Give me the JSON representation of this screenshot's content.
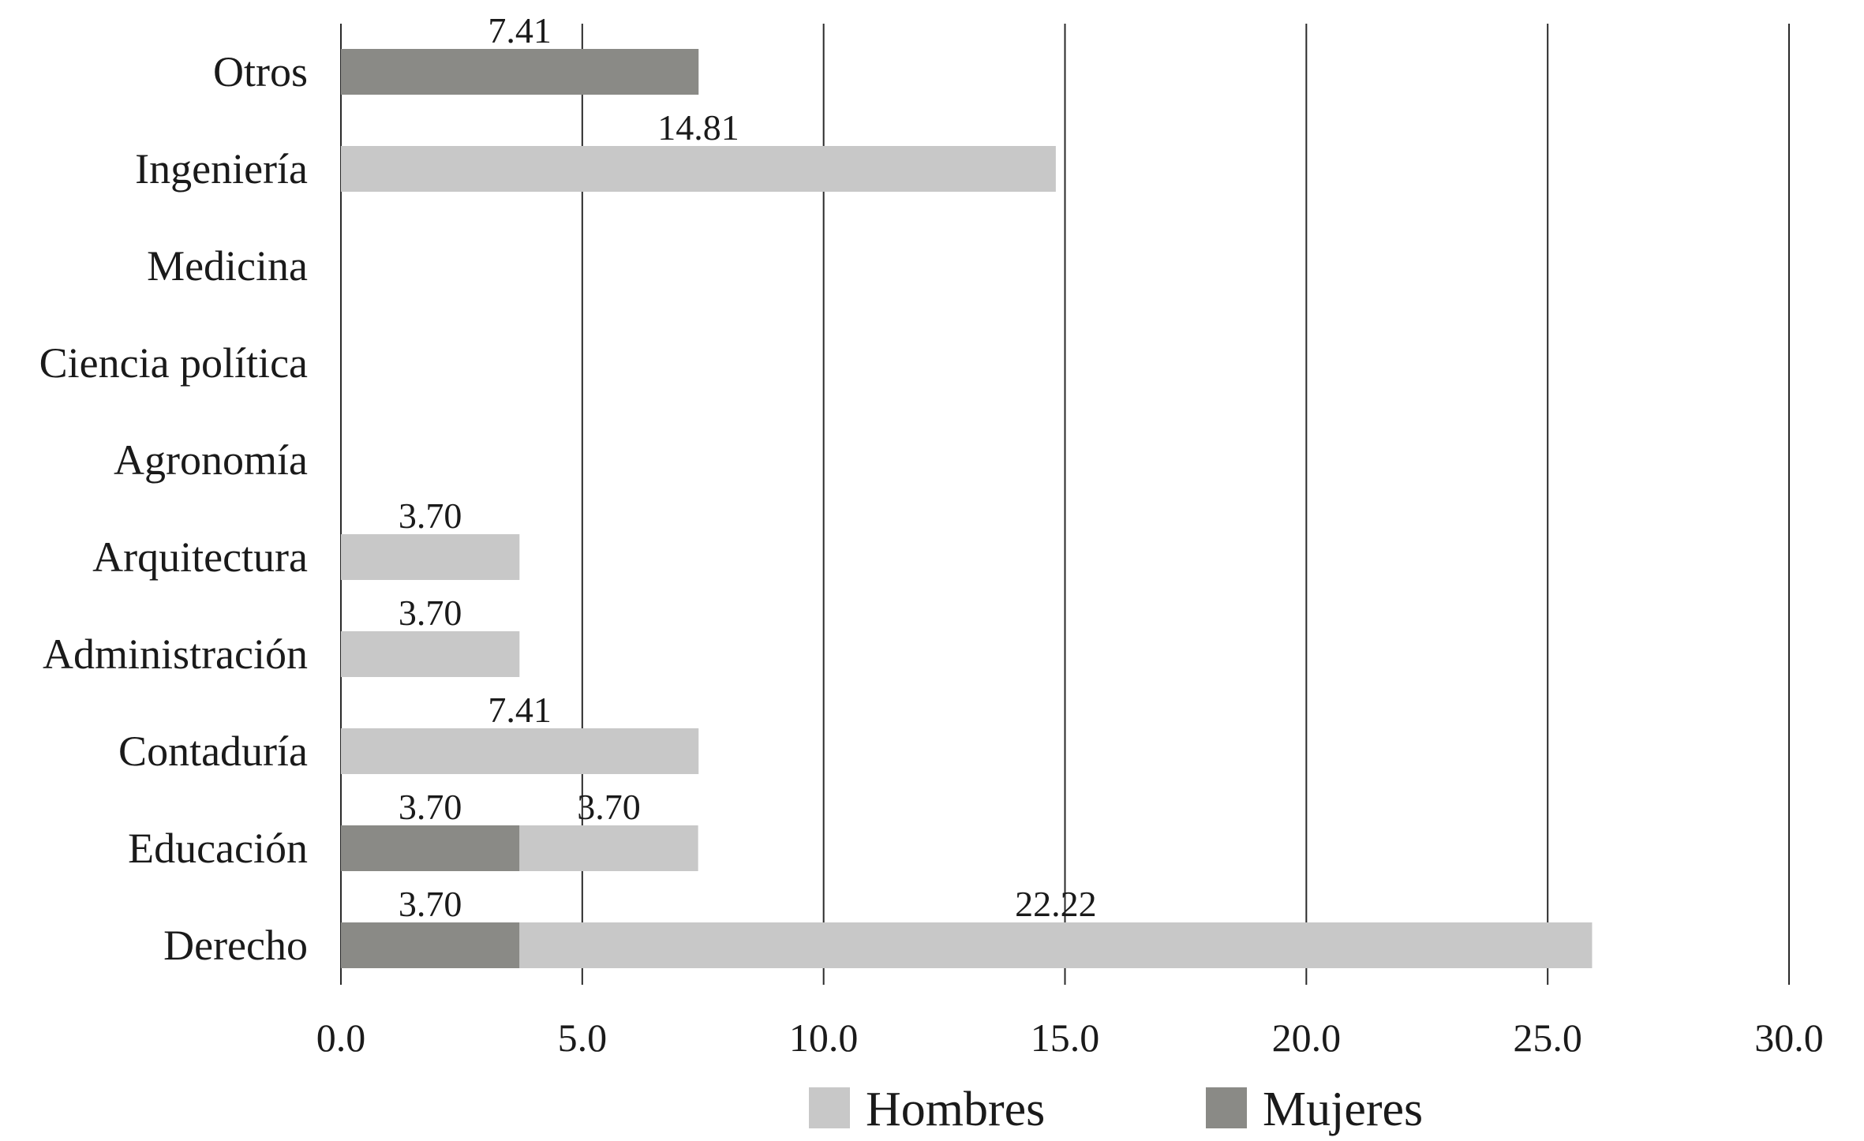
{
  "chart_data": {
    "type": "bar",
    "orientation": "horizontal",
    "stacked": true,
    "categories": [
      "Derecho",
      "Educación",
      "Contaduría",
      "Administración",
      "Arquitectura",
      "Agronomía",
      "Ciencia política",
      "Medicina",
      "Ingeniería",
      "Otros"
    ],
    "series": [
      {
        "name": "Mujeres",
        "color": "#8a8a86",
        "values": [
          3.7,
          3.7,
          0,
          0,
          0,
          0,
          0,
          0,
          0,
          7.41
        ]
      },
      {
        "name": "Hombres",
        "color": "#c8c8c8",
        "values": [
          22.22,
          3.7,
          7.41,
          3.7,
          3.7,
          0,
          0,
          0,
          14.81,
          0
        ]
      }
    ],
    "xlim": [
      0,
      30
    ],
    "xticks": [
      "0.0",
      "5.0",
      "10.0",
      "15.0",
      "20.0",
      "25.0",
      "30.0"
    ],
    "xtick_values": [
      0,
      5,
      10,
      15,
      20,
      25,
      30
    ],
    "grid": "vertical",
    "legend_position": "bottom",
    "legend": [
      {
        "name": "Hombres",
        "color": "#c8c8c8"
      },
      {
        "name": "Mujeres",
        "color": "#8a8a86"
      }
    ],
    "title": "",
    "xlabel": "",
    "ylabel": ""
  }
}
